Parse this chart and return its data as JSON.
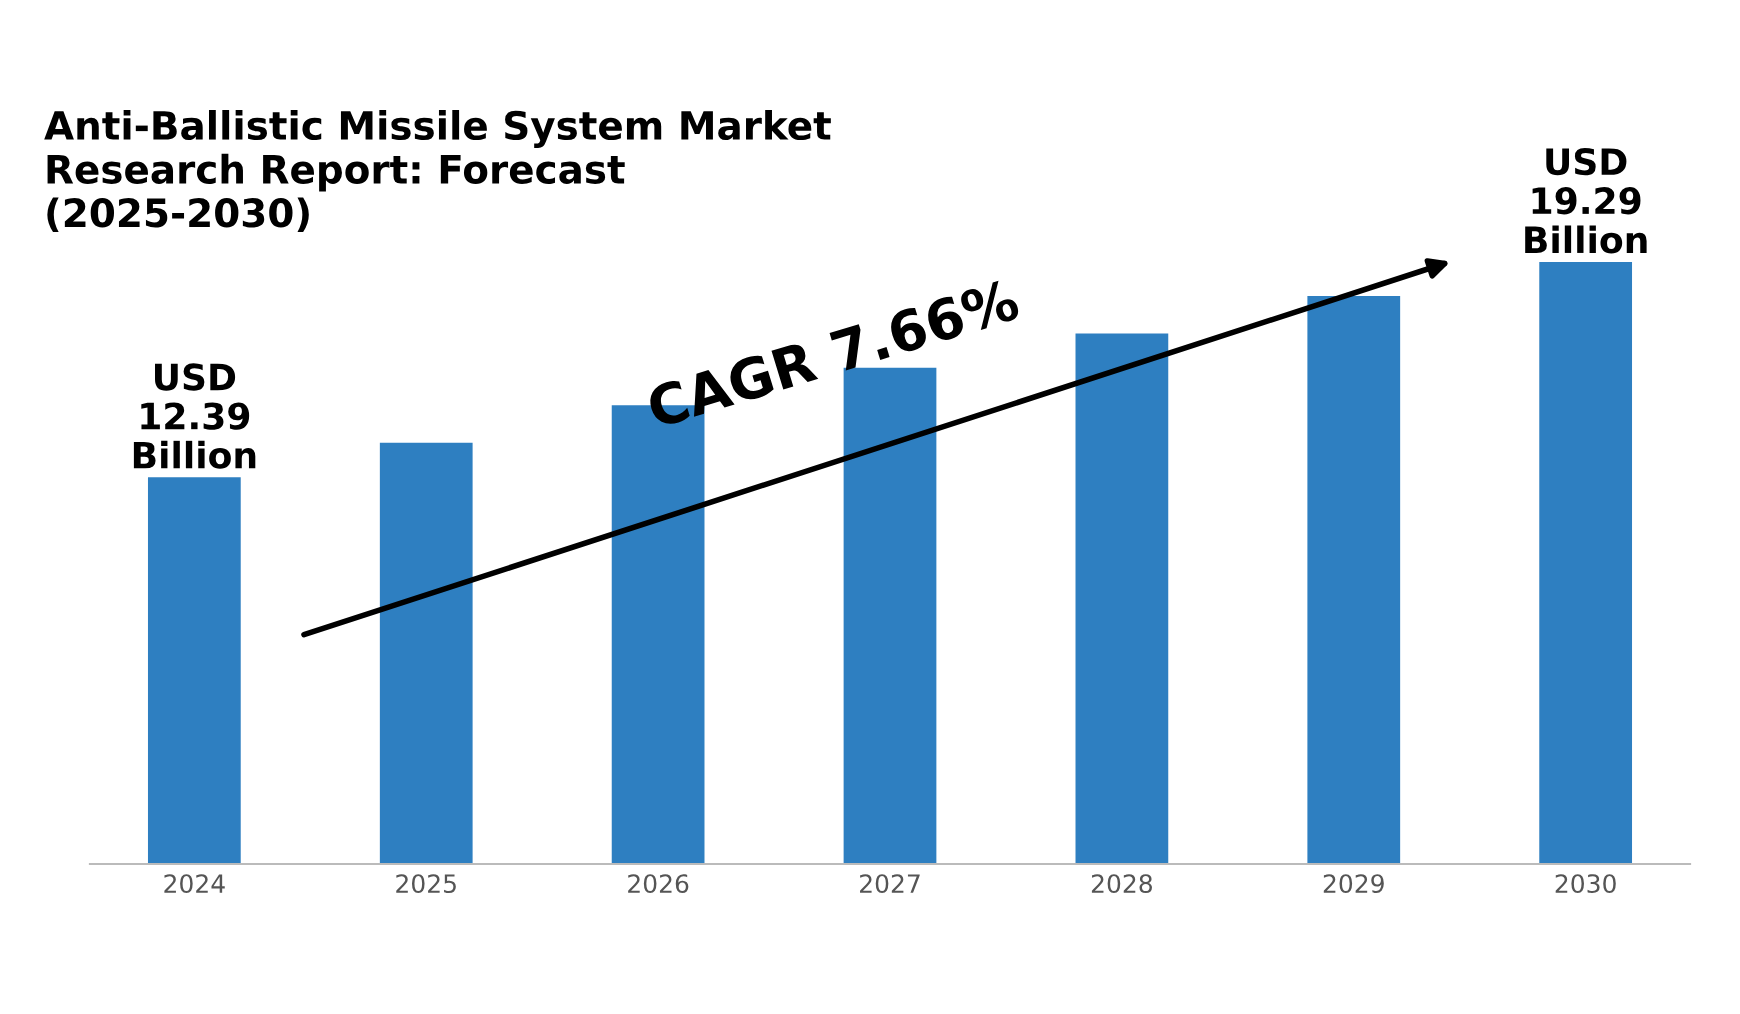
{
  "chart_data": {
    "type": "bar",
    "title": "Anti-Ballistic Missile System Market\nResearch Report: Forecast\n(2025-2030)",
    "categories": [
      "2024",
      "2025",
      "2026",
      "2027",
      "2028",
      "2029",
      "2030"
    ],
    "values": [
      12.39,
      13.5,
      14.7,
      15.9,
      17.0,
      18.2,
      19.29
    ],
    "value_labels": [
      "USD\n12.39\nBillion",
      null,
      null,
      null,
      null,
      null,
      "USD\n19.29\nBillion"
    ],
    "color": "#2e7fc1",
    "tick_labels": "x",
    "grid": false,
    "legend": false,
    "annotations": [
      "CAGR 7.66%"
    ]
  }
}
